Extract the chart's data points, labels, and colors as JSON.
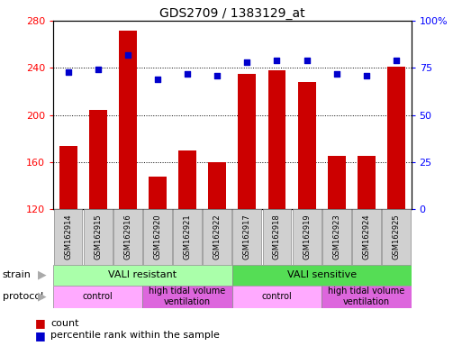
{
  "title": "GDS2709 / 1383129_at",
  "samples": [
    "GSM162914",
    "GSM162915",
    "GSM162916",
    "GSM162920",
    "GSM162921",
    "GSM162922",
    "GSM162917",
    "GSM162918",
    "GSM162919",
    "GSM162923",
    "GSM162924",
    "GSM162925"
  ],
  "counts": [
    174,
    204,
    272,
    148,
    170,
    160,
    235,
    238,
    228,
    165,
    165,
    241
  ],
  "percentiles": [
    73,
    74,
    82,
    69,
    72,
    71,
    78,
    79,
    79,
    72,
    71,
    79
  ],
  "ylim_left": [
    120,
    280
  ],
  "ylim_right": [
    0,
    100
  ],
  "yticks_left": [
    120,
    160,
    200,
    240,
    280
  ],
  "yticks_right": [
    0,
    25,
    50,
    75,
    100
  ],
  "bar_color": "#cc0000",
  "dot_color": "#0000cc",
  "background_plot": "#ffffff",
  "xtick_box_color": "#d0d0d0",
  "strain_colors": [
    "#aaffaa",
    "#55dd55"
  ],
  "protocol_colors": [
    "#ffaaff",
    "#dd66dd"
  ],
  "strain_groups": [
    {
      "label": "VALI resistant",
      "start": 0,
      "end": 6
    },
    {
      "label": "VALI sensitive",
      "start": 6,
      "end": 12
    }
  ],
  "protocol_groups": [
    {
      "label": "control",
      "start": 0,
      "end": 3
    },
    {
      "label": "high tidal volume\nventilation",
      "start": 3,
      "end": 6
    },
    {
      "label": "control",
      "start": 6,
      "end": 9
    },
    {
      "label": "high tidal volume\nventilation",
      "start": 9,
      "end": 12
    }
  ]
}
